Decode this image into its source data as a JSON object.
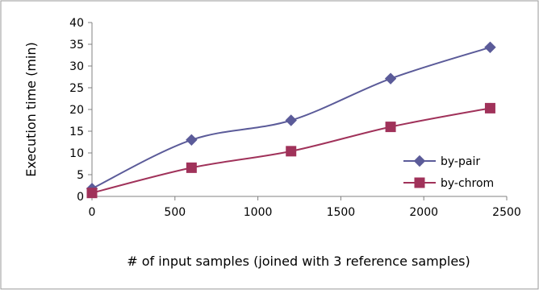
{
  "chart_data": {
    "type": "line",
    "title": "",
    "xlabel": "# of input samples (joined with 3 reference samples)",
    "ylabel": "Execution time (min)",
    "xlim": [
      0,
      2500
    ],
    "ylim": [
      0,
      40
    ],
    "xticks": [
      0,
      500,
      1000,
      1500,
      2000,
      2500
    ],
    "yticks": [
      0,
      5,
      10,
      15,
      20,
      25,
      30,
      35,
      40
    ],
    "grid": false,
    "legend_position": "right",
    "series": [
      {
        "name": "by-pair",
        "color": "#5b5b99",
        "marker": "diamond",
        "x": [
          0,
          600,
          1200,
          1800,
          2400
        ],
        "y": [
          1.8,
          13.0,
          17.5,
          27.1,
          34.3
        ]
      },
      {
        "name": "by-chrom",
        "color": "#a0325a",
        "marker": "square",
        "x": [
          0,
          600,
          1200,
          1800,
          2400
        ],
        "y": [
          0.8,
          6.6,
          10.4,
          16.0,
          20.3
        ]
      }
    ]
  }
}
